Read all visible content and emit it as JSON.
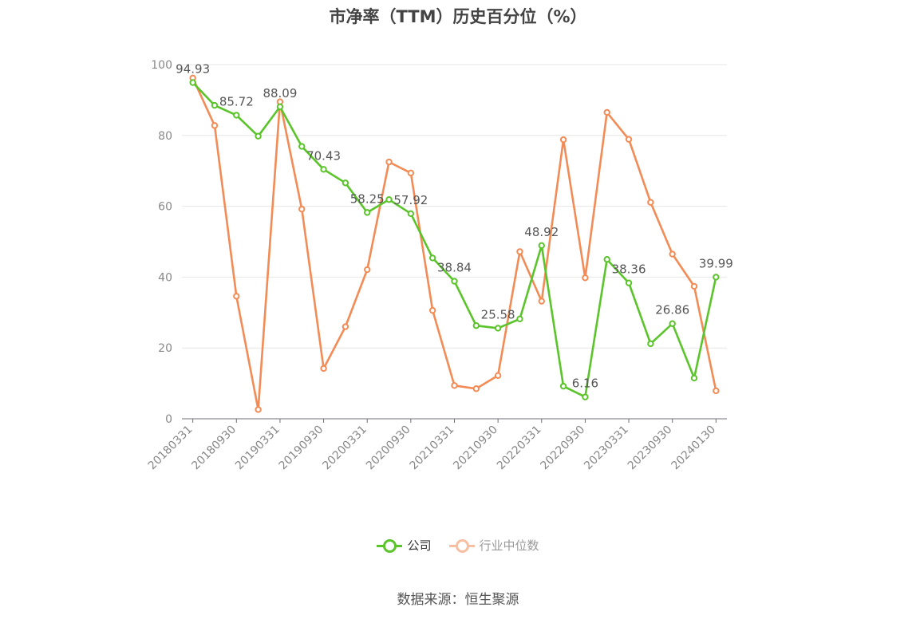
{
  "chart_data": {
    "type": "line",
    "title": "市净率（TTM）历史百分位（%）",
    "x": [
      "20180331",
      "20180630",
      "20180930",
      "20181231",
      "20190331",
      "20190630",
      "20190930",
      "20191231",
      "20200331",
      "20200630",
      "20200930",
      "20201231",
      "20210331",
      "20210630",
      "20210930",
      "20211231",
      "20220331",
      "20220630",
      "20220930",
      "20221231",
      "20230331",
      "20230630",
      "20230930",
      "20231231",
      "20240130"
    ],
    "x_tick_labels": [
      "20180331",
      "20180930",
      "20190331",
      "20190930",
      "20200331",
      "20200930",
      "20210331",
      "20210930",
      "20220331",
      "20220930",
      "20230331",
      "20230930",
      "20240130"
    ],
    "ylim": [
      0,
      100
    ],
    "y_ticks": [
      0,
      20,
      40,
      60,
      80,
      100
    ],
    "grid": true,
    "legend_position": "bottom",
    "series": [
      {
        "name": "公司",
        "color": "#5ac42a",
        "values": [
          94.93,
          88.5,
          85.72,
          79.8,
          88.09,
          76.9,
          70.43,
          66.6,
          58.25,
          61.9,
          57.92,
          45.4,
          38.84,
          26.3,
          25.58,
          28.2,
          48.92,
          9.2,
          6.16,
          45.0,
          38.36,
          21.2,
          26.86,
          11.5,
          39.99
        ],
        "labels": {
          "0": "94.93",
          "2": "85.72",
          "4": "88.09",
          "6": "70.43",
          "8": "58.25",
          "10": "57.92",
          "12": "38.84",
          "14": "25.58",
          "16": "48.92",
          "18": "6.16",
          "20": "38.36",
          "22": "26.86",
          "24": "39.99"
        }
      },
      {
        "name": "行业中位数",
        "color": "#f28b55",
        "values": [
          96.2,
          82.8,
          34.6,
          2.6,
          89.5,
          59.2,
          14.2,
          26.0,
          42.1,
          72.5,
          69.4,
          30.6,
          9.4,
          8.5,
          12.2,
          47.2,
          33.2,
          78.8,
          39.8,
          86.5,
          78.9,
          61.1,
          46.5,
          37.4,
          7.9
        ]
      }
    ]
  },
  "legend": {
    "items": [
      {
        "label": "公司",
        "color": "#5ac42a",
        "symbol": "circle-line"
      },
      {
        "label": "行业中位数",
        "color": "#f28b55",
        "symbol": "circle-line"
      }
    ]
  },
  "source": "数据来源：恒生聚源"
}
